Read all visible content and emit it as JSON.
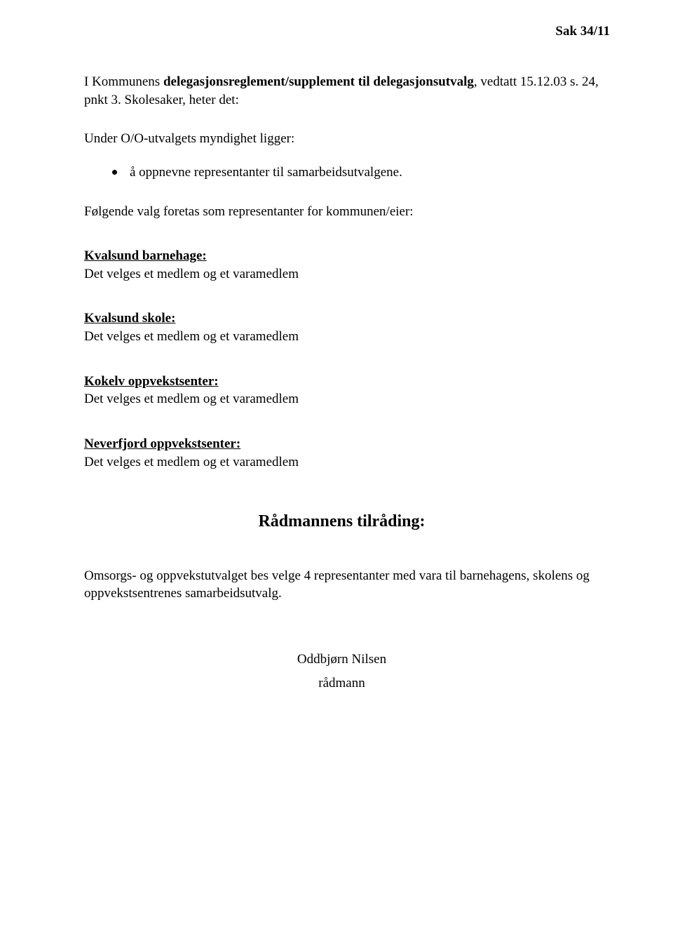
{
  "header": {
    "sak": "Sak 34/11"
  },
  "intro": {
    "prefix": "I Kommunens ",
    "boldPart": "delegasjonsreglement/supplement til delegasjonsutvalg",
    "suffix": ", vedtatt 15.12.03 s. 24, pnkt 3. Skolesaker, heter det:"
  },
  "underLine": "Under O/O-utvalgets myndighet ligger:",
  "bullet": "å oppnevne representanter til samarbeidsutvalgene.",
  "valgIntro": "Følgende valg foretas som representanter for kommunen/eier:",
  "sections": {
    "s1": {
      "title": "Kvalsund barnehage:",
      "body": "Det velges et medlem og et varamedlem"
    },
    "s2": {
      "title": "Kvalsund skole:",
      "body": "Det velges et medlem og et varamedlem"
    },
    "s3": {
      "title": "Kokelv oppvekstsenter:",
      "body": "Det velges et medlem og et varamedlem"
    },
    "s4": {
      "title": "Neverfjord oppvekstsenter:",
      "body": "Det velges et medlem og et varamedlem"
    }
  },
  "tilrading": "Rådmannens tilråding:",
  "closing": "Omsorgs- og oppvekstutvalget bes velge 4 representanter med vara til barnehagens, skolens og oppvekstsentrenes samarbeidsutvalg.",
  "signature": {
    "name": "Oddbjørn Nilsen",
    "title": "rådmann"
  }
}
